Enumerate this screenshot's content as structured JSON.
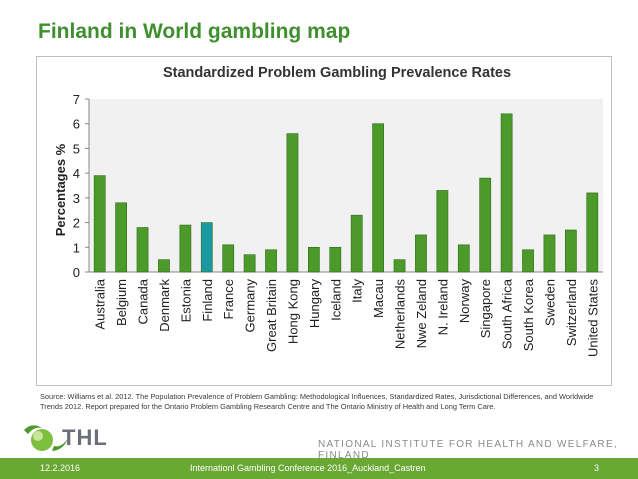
{
  "slide": {
    "title": "Finland in World gambling map",
    "source": "Source: Williams et al. 2012. The Population Prevalence of Problem Gambling: Methodological Influences, Standardized Rates, Jurisdictional Differences, and Worldwide Trends 2012. Report prepared for the Ontario Problem Gambling Research Centre and The Ontario Ministry of Health and Long Term Care.",
    "logo_text": "THL",
    "institute": "NATIONAL INSTITUTE FOR HEALTH AND WELFARE, FINLAND"
  },
  "footer": {
    "date": "12.2.2016",
    "event": "Internationl Gambling Conference 2016_Auckland_Castren",
    "page": "3"
  },
  "colors": {
    "bar": "#4c9a2a",
    "highlight": "#1a9aa0",
    "title": "#3f8f2f",
    "footer": "#69a833"
  },
  "chart_data": {
    "type": "bar",
    "title": "Standardized Problem Gambling Prevalence Rates",
    "xlabel": "",
    "ylabel": "Percentages %",
    "ylim": [
      0,
      7
    ],
    "yticks": [
      0,
      1,
      2,
      3,
      4,
      5,
      6,
      7
    ],
    "grid": false,
    "highlight": "Finland",
    "categories": [
      "Australia",
      "Belgium",
      "Canada",
      "Denmark",
      "Estonia",
      "Finland",
      "France",
      "Germany",
      "Great Britain",
      "Hong Kong",
      "Hungary",
      "Iceland",
      "Italy",
      "Macau",
      "Netherlands",
      "Nwe Zeland",
      "N. Ireland",
      "Norway",
      "Singapore",
      "South Africa",
      "South Korea",
      "Sweden",
      "Switzerland",
      "United States"
    ],
    "values": [
      3.9,
      2.8,
      1.8,
      0.5,
      1.9,
      2.0,
      1.1,
      0.7,
      0.9,
      5.6,
      1.0,
      1.0,
      2.3,
      6.0,
      0.5,
      1.5,
      3.3,
      1.1,
      3.8,
      6.4,
      0.9,
      1.5,
      1.7,
      3.2
    ]
  }
}
